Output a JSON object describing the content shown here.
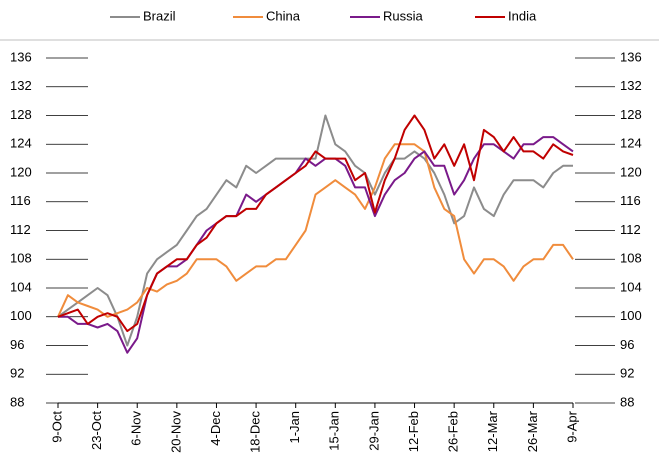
{
  "chart_data": {
    "type": "line",
    "categories": [
      "9-Oct",
      null,
      null,
      null,
      "23-Oct",
      null,
      null,
      null,
      "6-Nov",
      null,
      null,
      null,
      "20-Nov",
      null,
      null,
      null,
      "4-Dec",
      null,
      null,
      null,
      "18-Dec",
      null,
      null,
      null,
      "1-Jan",
      null,
      null,
      null,
      "15-Jan",
      null,
      null,
      null,
      "29-Jan",
      null,
      null,
      null,
      "12-Feb",
      null,
      null,
      null,
      "26-Feb",
      null,
      null,
      null,
      "12-Mar",
      null,
      null,
      null,
      "26-Mar",
      null,
      null,
      null,
      "9-Apr"
    ],
    "series": [
      {
        "name": "Brazil",
        "color": "#8c8c8c",
        "values": [
          100,
          101,
          102,
          103,
          104,
          103,
          100,
          96,
          100,
          106,
          108,
          109,
          110,
          112,
          114,
          115,
          117,
          119,
          118,
          121,
          120,
          121,
          122,
          122,
          122,
          122,
          122,
          128,
          124,
          123,
          121,
          120,
          117,
          120,
          122,
          122,
          123,
          122,
          120,
          117,
          113,
          114,
          118,
          115,
          114,
          117,
          119,
          119,
          119,
          118,
          120,
          121,
          121
        ]
      },
      {
        "name": "China",
        "color": "#f08c3c",
        "values": [
          100,
          103,
          102,
          101.5,
          101,
          100,
          100.5,
          101,
          102,
          104,
          103.5,
          104.5,
          105,
          106,
          108,
          108,
          108,
          107,
          105,
          106,
          107,
          107,
          108,
          108,
          110,
          112,
          117,
          118,
          119,
          118,
          117,
          115,
          118,
          122,
          124,
          124,
          124,
          123,
          118,
          115,
          114,
          108,
          106,
          108,
          108,
          107,
          105,
          107,
          108,
          108,
          110,
          110,
          108
        ]
      },
      {
        "name": "Russia",
        "color": "#7a1a8a",
        "values": [
          100,
          100,
          99,
          99,
          98.5,
          99,
          98,
          95,
          97,
          103,
          106,
          107,
          107,
          108,
          110,
          112,
          113,
          114,
          114,
          117,
          116,
          117,
          118,
          119,
          120,
          122,
          121,
          122,
          122,
          121,
          118,
          118,
          114,
          117,
          119,
          120,
          122,
          123,
          121,
          121,
          117,
          119,
          122,
          124,
          124,
          123,
          122,
          124,
          124,
          125,
          125,
          124,
          123
        ]
      },
      {
        "name": "India",
        "color": "#c00000",
        "values": [
          100,
          100.5,
          101,
          99,
          100,
          100.5,
          100,
          98,
          99,
          103,
          106,
          107,
          108,
          108,
          110,
          111,
          113,
          114,
          114,
          115,
          115,
          117,
          118,
          119,
          120,
          121,
          123,
          122,
          122,
          122,
          119,
          120,
          114.5,
          119,
          122,
          126,
          128,
          126,
          122,
          124,
          121,
          124,
          119,
          126,
          125,
          123,
          125,
          123,
          123,
          122,
          124,
          123,
          122.5
        ]
      }
    ],
    "ylim": [
      88,
      136
    ],
    "yticks": [
      88,
      92,
      96,
      100,
      104,
      108,
      112,
      116,
      120,
      124,
      128,
      132,
      136
    ],
    "y2lim": [
      88,
      136
    ],
    "y2ticks": [
      88,
      92,
      96,
      100,
      104,
      108,
      112,
      116,
      120,
      124,
      128,
      132,
      136
    ]
  }
}
